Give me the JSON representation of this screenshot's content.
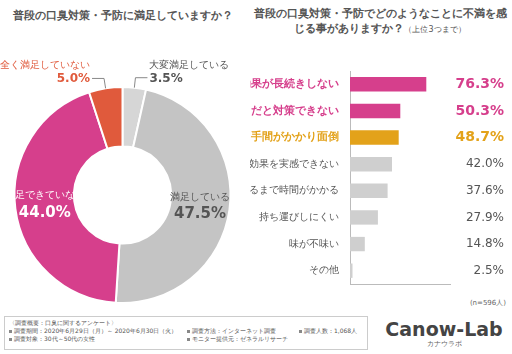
{
  "chart_data": [
    {
      "type": "doughnut",
      "title": "普段の口臭対策・予防に満足していますか？",
      "categories": [
        "大変満足している",
        "満足している",
        "満足できていない",
        "全く満足していない"
      ],
      "values": [
        3.5,
        47.5,
        44.0,
        5.0
      ],
      "value_labels": [
        "3.5%",
        "47.5%",
        "44.0%",
        "5.0%"
      ],
      "colors": [
        "#d6d6d6",
        "#c4c4c4",
        "#d63f8c",
        "#e05a3c"
      ],
      "data_labels": true
    },
    {
      "type": "bar",
      "title": "普段の口臭対策・予防でどのようなことに不満を感じる事がありますか？",
      "subtitle": "（上位3つまで）",
      "orientation": "horizontal",
      "categories": [
        "効果が長続きしない",
        "仕事中だと対策できない",
        "手間がかかり面倒",
        "効果を実感できない",
        "効果が出るまで時間がかかる",
        "持ち運びしにくい",
        "味が不味い",
        "その他"
      ],
      "values": [
        76.3,
        50.3,
        48.7,
        42.0,
        37.6,
        27.9,
        14.8,
        2.5
      ],
      "value_labels": [
        "76.3%",
        "50.3%",
        "48.7%",
        "42.0%",
        "37.6%",
        "27.9%",
        "14.8%",
        "2.5%"
      ],
      "colors": [
        "#d63f8c",
        "#d63f8c",
        "#e3a21a",
        "#cfcfcf",
        "#cfcfcf",
        "#cfcfcf",
        "#cfcfcf",
        "#cfcfcf"
      ],
      "xlim": [
        0,
        100
      ],
      "grid": false,
      "tick_labels": "y",
      "data_labels": true,
      "annotation": "(n=596人)"
    }
  ],
  "survey": {
    "heading": "〈調査概要：口臭に関するアンケート〉",
    "items": [
      "調査期間：2020年6月29日（月）～ 2020年6月30日（火）",
      "調査方法：インターネット調査",
      "調査人数：1,068人",
      "調査対象：30代～50代の女性",
      "モニター提供元：ゼネラルリサーチ"
    ]
  },
  "logo": {
    "name": "Canow-Lab",
    "kana": "カナウラボ"
  }
}
